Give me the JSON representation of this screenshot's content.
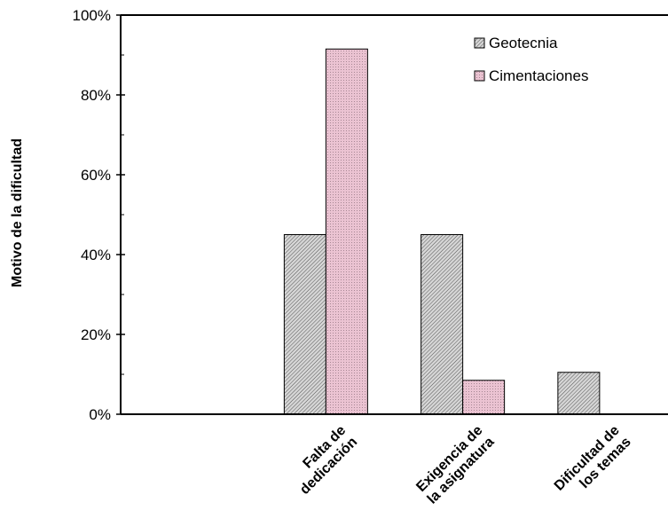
{
  "chart_data": {
    "type": "bar",
    "title": "",
    "xlabel": "",
    "ylabel": "Motivo de la dificultad",
    "ylim": [
      0,
      100
    ],
    "y_ticks": [
      "0%",
      "20%",
      "40%",
      "60%",
      "80%",
      "100%"
    ],
    "categories": [
      [
        "",
        ""
      ],
      [
        "Falta de",
        "dedicación"
      ],
      [
        "Exigencia de",
        "la asignatura"
      ],
      [
        "Dificultad de",
        "los temas"
      ]
    ],
    "series": [
      {
        "name": "Geotecnia",
        "values": [
          0,
          45,
          45,
          10.5
        ],
        "color": "#d3d3d3",
        "pattern": "dense-hatch"
      },
      {
        "name": "Cimentaciones",
        "values": [
          0,
          91.5,
          8.5,
          0
        ],
        "color": "#e9bccd",
        "pattern": "dots"
      }
    ],
    "legend_position": "top-right",
    "grid": false
  }
}
